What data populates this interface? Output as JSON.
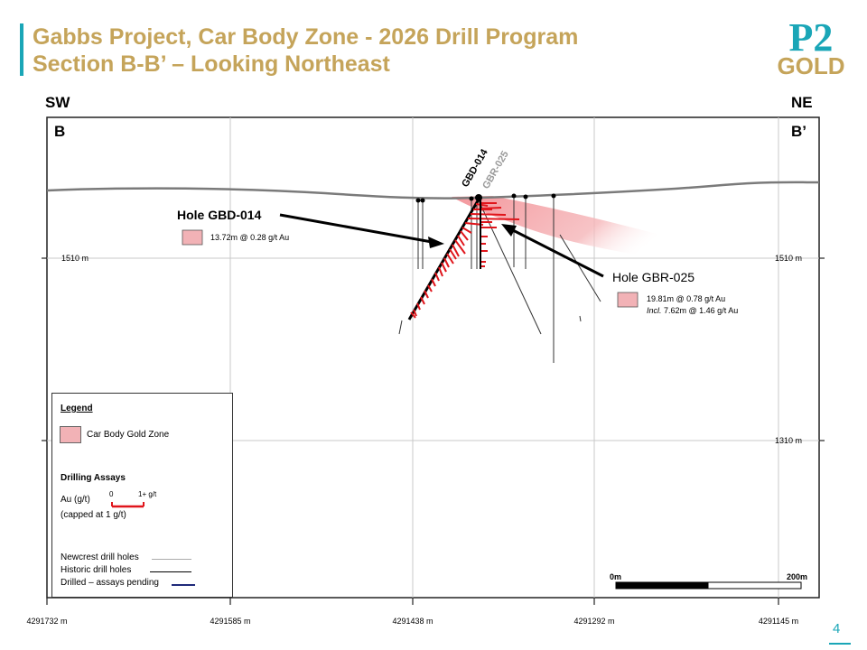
{
  "header": {
    "title_line1": "Gabbs Project, Car Body Zone - 2026 Drill Program",
    "title_line2": "Section B-B’ – Looking Northeast",
    "logo_top": "P2",
    "logo_bottom": "GOLD"
  },
  "section": {
    "dir_left": "SW",
    "dir_right": "NE",
    "label_left": "B",
    "label_right": "B’",
    "elev_labels": [
      "1510 m",
      "1310 m"
    ],
    "easting_labels": [
      "4291732 m",
      "4291585 m",
      "4291438 m",
      "4291292 m",
      "4291145 m"
    ],
    "holes": [
      {
        "name": "GBD-014",
        "callout": "Hole GBD-014",
        "assay": "13.72m @  0.28 g/t Au"
      },
      {
        "name": "GBR-025",
        "callout": "Hole GBR-025",
        "assay": "19.81m @  0.78 g/t Au",
        "incl_prefix": "Incl.",
        "incl_assay": " 7.62m @  1.46 g/t Au"
      }
    ],
    "scale": {
      "start": "0m",
      "end": "200m"
    }
  },
  "legend": {
    "title": "Legend",
    "zone": "Car Body Gold Zone",
    "drilling_assays": "Drilling Assays",
    "au_label": "Au (g/t)",
    "scale_min": "0",
    "scale_max": "1+ g/t",
    "capped": "(capped at 1 g/t)",
    "newcrest": "Newcrest drill holes",
    "historic": "Historic drill holes",
    "drilled": "Drilled – assays pending"
  },
  "colors": {
    "accent": "#1aa6b7",
    "title_gold": "#c5a45a",
    "zone_pink": "#f2b2b6",
    "assay_red": "#e0151b",
    "pending_blue": "#1f2a7a"
  },
  "page_number": "4"
}
